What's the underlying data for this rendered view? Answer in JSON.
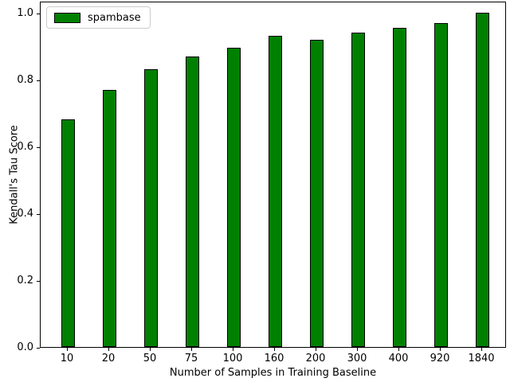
{
  "figure": {
    "background": "#ffffff"
  },
  "legend": {
    "label": "spambase",
    "swatch_color": "#008000",
    "swatch_edge_color": "#000000",
    "box_edge_color": "#cccccc"
  },
  "chart_data": {
    "type": "bar",
    "title": "",
    "categories": [
      "10",
      "20",
      "50",
      "75",
      "100",
      "160",
      "200",
      "300",
      "400",
      "920",
      "1840"
    ],
    "values": [
      0.68,
      0.77,
      0.83,
      0.87,
      0.895,
      0.93,
      0.92,
      0.94,
      0.955,
      0.97,
      1.0
    ],
    "xlabel": "Number of Samples in Training Baseline",
    "ylabel": "Kendall's Tau Score",
    "ylim": [
      0.0,
      1.035
    ],
    "yticks": [
      "0.0",
      "0.2",
      "0.4",
      "0.6",
      "0.8",
      "1.0"
    ],
    "grid": "off",
    "legend_position": "upper left",
    "bar_color": "#008000",
    "bar_edge_color": "#000000",
    "spine_color": "#000000"
  }
}
